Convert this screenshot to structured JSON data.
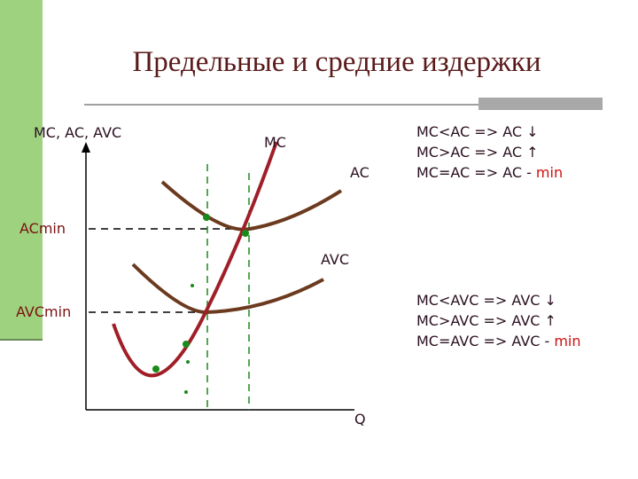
{
  "title": "Предельные и средние издержки",
  "axes": {
    "y_label": "MC, AC, AVC",
    "x_label": "Q"
  },
  "curves": {
    "mc": "MC",
    "ac": "AC",
    "avc": "AVC"
  },
  "levels": {
    "ac_min": "ACmin",
    "avc_min": "AVCmin"
  },
  "rules_ac": [
    {
      "text": "MC<AC => AC ↓"
    },
    {
      "text": "MC>AC => AC ↑"
    },
    {
      "text": "MC=AC => AC -",
      "highlight": "min"
    }
  ],
  "rules_avc": [
    {
      "text": "MC<AVC => AVC ↓"
    },
    {
      "text": "MC>AVC => AVC ↑"
    },
    {
      "text": "MC=AVC => AVC -",
      "highlight": "min"
    }
  ]
}
